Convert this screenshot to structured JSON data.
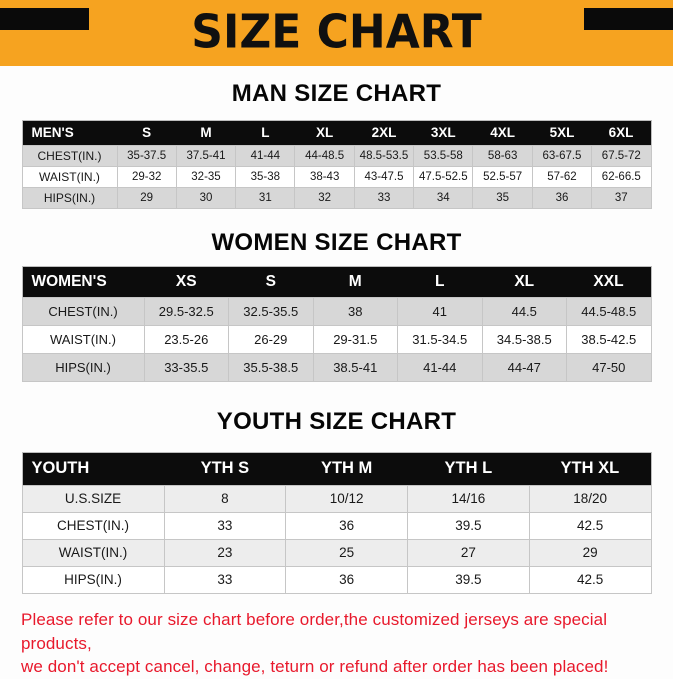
{
  "banner": {
    "title": "SIZE CHART",
    "bg_color": "#F6A320",
    "corner_color": "#0A0A0A"
  },
  "sections": {
    "man": {
      "heading": "MAN SIZE CHART",
      "table": {
        "header": [
          "MEN'S",
          "S",
          "M",
          "L",
          "XL",
          "2XL",
          "3XL",
          "4XL",
          "5XL",
          "6XL"
        ],
        "rows": [
          [
            "CHEST(IN.)",
            "35-37.5",
            "37.5-41",
            "41-44",
            "44-48.5",
            "48.5-53.5",
            "53.5-58",
            "58-63",
            "63-67.5",
            "67.5-72"
          ],
          [
            "WAIST(IN.)",
            "29-32",
            "32-35",
            "35-38",
            "38-43",
            "43-47.5",
            "47.5-52.5",
            "52.5-57",
            "57-62",
            "62-66.5"
          ],
          [
            "HIPS(IN.)",
            "29",
            "30",
            "31",
            "32",
            "33",
            "34",
            "35",
            "36",
            "37"
          ]
        ]
      }
    },
    "women": {
      "heading": "WOMEN SIZE CHART",
      "table": {
        "header": [
          "WOMEN'S",
          "XS",
          "S",
          "M",
          "L",
          "XL",
          "XXL"
        ],
        "rows": [
          [
            "CHEST(IN.)",
            "29.5-32.5",
            "32.5-35.5",
            "38",
            "41",
            "44.5",
            "44.5-48.5"
          ],
          [
            "WAIST(IN.)",
            "23.5-26",
            "26-29",
            "29-31.5",
            "31.5-34.5",
            "34.5-38.5",
            "38.5-42.5"
          ],
          [
            "HIPS(IN.)",
            "33-35.5",
            "35.5-38.5",
            "38.5-41",
            "41-44",
            "44-47",
            "47-50"
          ]
        ]
      }
    },
    "youth": {
      "heading": "YOUTH SIZE CHART",
      "table": {
        "header": [
          "YOUTH",
          "YTH S",
          "YTH M",
          "YTH L",
          "YTH XL"
        ],
        "rows": [
          [
            "U.S.SIZE",
            "8",
            "10/12",
            "14/16",
            "18/20"
          ],
          [
            "CHEST(IN.)",
            "33",
            "36",
            "39.5",
            "42.5"
          ],
          [
            "WAIST(IN.)",
            "23",
            "25",
            "27",
            "29"
          ],
          [
            "HIPS(IN.)",
            "33",
            "36",
            "39.5",
            "42.5"
          ]
        ]
      }
    }
  },
  "footer": {
    "line1": "Please refer to our size chart before order,the customized jerseys are special products,",
    "line2": "we don't accept cancel, change, teturn or refund after order has been placed!",
    "text_color": "#E8192C"
  },
  "colors": {
    "table_header_bg": "#0C0C0C",
    "table_header_text": "#FFFFFF",
    "stripe_gray": "#D7D7D7",
    "stripe_gray_youth": "#EDEDED"
  }
}
